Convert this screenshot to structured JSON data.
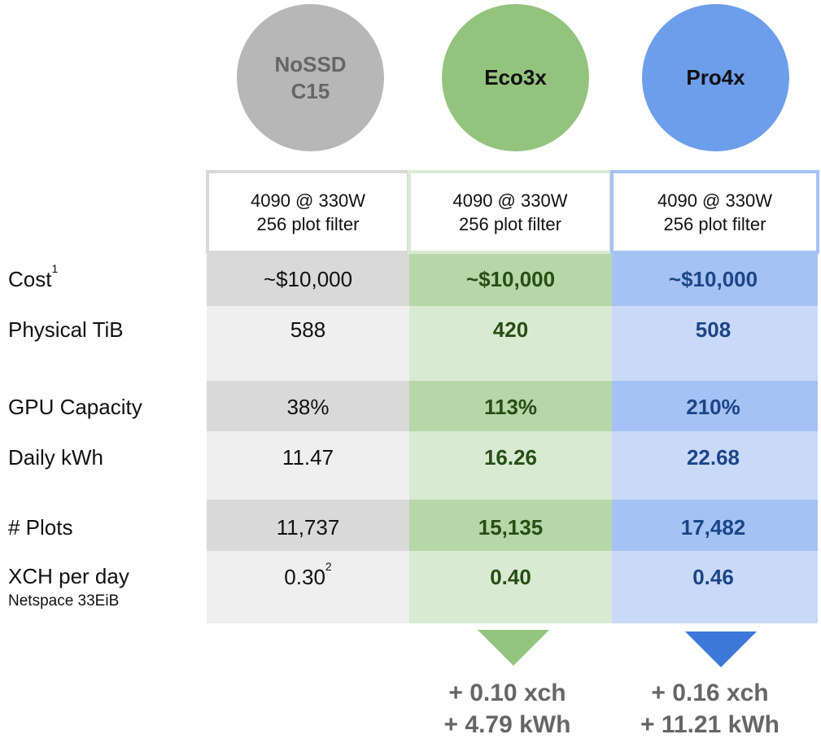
{
  "colors": {
    "grey_circle": "#b7b7b7",
    "green_circle": "#93c47d",
    "blue_circle": "#6d9eeb",
    "grey_dark": "#d9d9d9",
    "grey_light": "#efefef",
    "green_dark": "#b6d7a8",
    "green_light": "#d9ead3",
    "blue_dark": "#a4c2f4",
    "blue_light": "#c9daf8",
    "green_text": "#274e13",
    "blue_text": "#1c4587",
    "blue_arrow": "#3c78d8"
  },
  "columns": [
    {
      "name_line1": "NoSSD",
      "name_line2": "C15",
      "spec_line1": "4090 @ 330W",
      "spec_line2": "256 plot filter"
    },
    {
      "name_line1": "Eco3x",
      "name_line2": "",
      "spec_line1": "4090 @ 330W",
      "spec_line2": "256 plot filter"
    },
    {
      "name_line1": "Pro4x",
      "name_line2": "",
      "spec_line1": "4090 @ 330W",
      "spec_line2": "256 plot filter"
    }
  ],
  "rows": {
    "cost": {
      "label": "Cost",
      "note": "1",
      "values": [
        "~$10,000",
        "~$10,000",
        "~$10,000"
      ]
    },
    "tib": {
      "label": "Physical TiB",
      "values": [
        "588",
        "420",
        "508"
      ]
    },
    "gpu": {
      "label": "GPU Capacity",
      "values": [
        "38%",
        "113%",
        "210%"
      ]
    },
    "kwh": {
      "label": "Daily kWh",
      "values": [
        "11.47",
        "16.26",
        "22.68"
      ]
    },
    "plots": {
      "label": "# Plots",
      "values": [
        "11,737",
        "15,135",
        "17,482"
      ]
    },
    "xch": {
      "label": "XCH per day",
      "sublabel": "Netspace 33EiB",
      "values": [
        "0.30",
        "0.40",
        "0.46"
      ],
      "note": "2"
    }
  },
  "deltas": [
    {
      "xch": "+ 0.10 xch",
      "kwh": "+ 4.79 kWh"
    },
    {
      "xch": "+ 0.16 xch",
      "kwh": "+ 11.21 kWh"
    }
  ]
}
